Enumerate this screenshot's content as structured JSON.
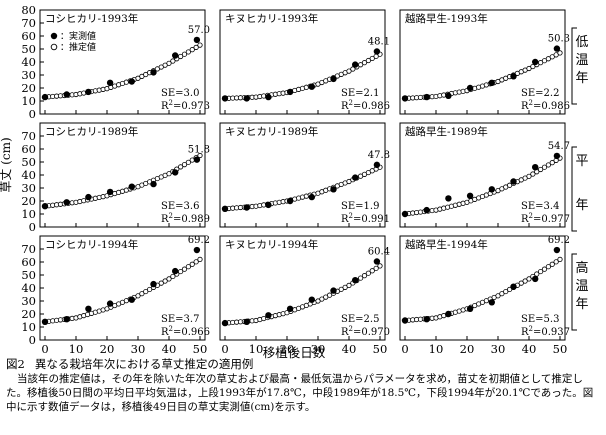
{
  "figure": {
    "ylabel": "草丈 (cm)",
    "xlabel": "移植後日数",
    "legend": {
      "observed": "：実測値",
      "estimated": "：推定値"
    },
    "row_labels": [
      "低温年",
      "平年",
      "高温年"
    ]
  },
  "caption": {
    "number": "図2",
    "title": "異なる栽培年次における草丈推定の適用例",
    "body": "当該年の推定値は，その年を除いた年次の草丈および最高・最低気温からパラメータを求め，苗丈を初期値として推定した。移植後50日間の平均日平均気温は，上段1993年が17.8℃，中段1989年が18.5℃，下段1994年が20.1℃であった。図中に示す数値データは，移植後49日目の草丈実測値(cm)を示す。"
  },
  "chart_data": [
    {
      "type": "scatter",
      "title": "コシヒカリ-1993年",
      "annotation": "57.0",
      "se": "SE=3.0",
      "r2": "R",
      "r2v": "=0.973",
      "xlim": [
        0,
        50
      ],
      "ylim": [
        0,
        80
      ],
      "xticks": [],
      "yticks": [
        0,
        10,
        20,
        30,
        40,
        50,
        60,
        70,
        80
      ],
      "observed": [
        {
          "x": 0,
          "y": 13
        },
        {
          "x": 7,
          "y": 15
        },
        {
          "x": 14,
          "y": 17
        },
        {
          "x": 21,
          "y": 24
        },
        {
          "x": 28,
          "y": 25
        },
        {
          "x": 35,
          "y": 32
        },
        {
          "x": 42,
          "y": 45
        },
        {
          "x": 49,
          "y": 57
        }
      ],
      "estimated_curve": [
        {
          "x": 0,
          "y": 13
        },
        {
          "x": 10,
          "y": 15
        },
        {
          "x": 20,
          "y": 19.5
        },
        {
          "x": 30,
          "y": 27.5
        },
        {
          "x": 40,
          "y": 39
        },
        {
          "x": 50,
          "y": 53
        }
      ]
    },
    {
      "type": "scatter",
      "title": "キヌヒカリ-1993年",
      "annotation": "48.1",
      "se": "SE=2.1",
      "r2": "R",
      "r2v": "=0.986",
      "xlim": [
        0,
        50
      ],
      "ylim": [
        0,
        80
      ],
      "xticks": [],
      "yticks": [],
      "observed": [
        {
          "x": 0,
          "y": 12
        },
        {
          "x": 7,
          "y": 12
        },
        {
          "x": 14,
          "y": 13
        },
        {
          "x": 21,
          "y": 17
        },
        {
          "x": 28,
          "y": 21
        },
        {
          "x": 35,
          "y": 27
        },
        {
          "x": 42,
          "y": 38
        },
        {
          "x": 49,
          "y": 48.1
        }
      ],
      "estimated_curve": [
        {
          "x": 0,
          "y": 12
        },
        {
          "x": 10,
          "y": 13
        },
        {
          "x": 20,
          "y": 16.5
        },
        {
          "x": 30,
          "y": 23
        },
        {
          "x": 40,
          "y": 33
        },
        {
          "x": 50,
          "y": 46
        }
      ]
    },
    {
      "type": "scatter",
      "title": "越路早生-1993年",
      "annotation": "50.3",
      "se": "SE=2.2",
      "r2": "R",
      "r2v": "=0.986",
      "xlim": [
        0,
        50
      ],
      "ylim": [
        0,
        80
      ],
      "xticks": [],
      "yticks": [],
      "observed": [
        {
          "x": 0,
          "y": 12
        },
        {
          "x": 7,
          "y": 13
        },
        {
          "x": 14,
          "y": 14
        },
        {
          "x": 21,
          "y": 20
        },
        {
          "x": 28,
          "y": 24
        },
        {
          "x": 35,
          "y": 29
        },
        {
          "x": 42,
          "y": 40
        },
        {
          "x": 49,
          "y": 50.3
        }
      ],
      "estimated_curve": [
        {
          "x": 0,
          "y": 12
        },
        {
          "x": 10,
          "y": 13.5
        },
        {
          "x": 20,
          "y": 18
        },
        {
          "x": 30,
          "y": 25
        },
        {
          "x": 40,
          "y": 35
        },
        {
          "x": 50,
          "y": 47
        }
      ]
    },
    {
      "type": "scatter",
      "title": "コシヒカリ-1989年",
      "annotation": "51.8",
      "se": "SE=3.6",
      "r2": "R",
      "r2v": "=0.989",
      "xlim": [
        0,
        50
      ],
      "ylim": [
        0,
        80
      ],
      "xticks": [],
      "yticks": [
        0,
        10,
        20,
        30,
        40,
        50,
        60,
        70
      ],
      "observed": [
        {
          "x": 0,
          "y": 16
        },
        {
          "x": 7,
          "y": 19
        },
        {
          "x": 14,
          "y": 23
        },
        {
          "x": 21,
          "y": 27
        },
        {
          "x": 28,
          "y": 31
        },
        {
          "x": 35,
          "y": 33
        },
        {
          "x": 42,
          "y": 42
        },
        {
          "x": 49,
          "y": 51.8
        }
      ],
      "estimated_curve": [
        {
          "x": 0,
          "y": 16
        },
        {
          "x": 10,
          "y": 19
        },
        {
          "x": 20,
          "y": 24
        },
        {
          "x": 30,
          "y": 31
        },
        {
          "x": 40,
          "y": 41
        },
        {
          "x": 50,
          "y": 55
        }
      ]
    },
    {
      "type": "scatter",
      "title": "キヌヒカリ-1989年",
      "annotation": "47.8",
      "se": "SE=1.9",
      "r2": "R",
      "r2v": "=0.991",
      "xlim": [
        0,
        50
      ],
      "ylim": [
        0,
        80
      ],
      "xticks": [],
      "yticks": [],
      "observed": [
        {
          "x": 0,
          "y": 14
        },
        {
          "x": 7,
          "y": 15
        },
        {
          "x": 14,
          "y": 17
        },
        {
          "x": 21,
          "y": 20
        },
        {
          "x": 28,
          "y": 23
        },
        {
          "x": 35,
          "y": 29
        },
        {
          "x": 42,
          "y": 38
        },
        {
          "x": 49,
          "y": 47.8
        }
      ],
      "estimated_curve": [
        {
          "x": 0,
          "y": 14
        },
        {
          "x": 10,
          "y": 16
        },
        {
          "x": 20,
          "y": 20
        },
        {
          "x": 30,
          "y": 26
        },
        {
          "x": 40,
          "y": 35
        },
        {
          "x": 50,
          "y": 46
        }
      ]
    },
    {
      "type": "scatter",
      "title": "越路早生-1989年",
      "annotation": "54.7",
      "se": "SE=3.4",
      "r2": "R",
      "r2v": "=0.977",
      "xlim": [
        0,
        50
      ],
      "ylim": [
        0,
        80
      ],
      "xticks": [],
      "yticks": [],
      "observed": [
        {
          "x": 0,
          "y": 10
        },
        {
          "x": 7,
          "y": 13
        },
        {
          "x": 14,
          "y": 22
        },
        {
          "x": 21,
          "y": 24
        },
        {
          "x": 28,
          "y": 29
        },
        {
          "x": 35,
          "y": 35
        },
        {
          "x": 42,
          "y": 46
        },
        {
          "x": 49,
          "y": 54.7
        }
      ],
      "estimated_curve": [
        {
          "x": 0,
          "y": 10
        },
        {
          "x": 10,
          "y": 13
        },
        {
          "x": 20,
          "y": 19
        },
        {
          "x": 30,
          "y": 28
        },
        {
          "x": 40,
          "y": 39
        },
        {
          "x": 50,
          "y": 53
        }
      ]
    },
    {
      "type": "scatter",
      "title": "コシヒカリ-1994年",
      "annotation": "69.2",
      "se": "SE=3.7",
      "r2": "R",
      "r2v": "=0.966",
      "xlim": [
        0,
        50
      ],
      "ylim": [
        0,
        80
      ],
      "xticks": [
        0,
        10,
        20,
        30,
        40,
        50
      ],
      "yticks": [
        0,
        10,
        20,
        30,
        40,
        50,
        60,
        70
      ],
      "observed": [
        {
          "x": 0,
          "y": 14
        },
        {
          "x": 7,
          "y": 16
        },
        {
          "x": 14,
          "y": 24
        },
        {
          "x": 21,
          "y": 28
        },
        {
          "x": 28,
          "y": 31
        },
        {
          "x": 35,
          "y": 43
        },
        {
          "x": 42,
          "y": 53
        },
        {
          "x": 49,
          "y": 69.2
        }
      ],
      "estimated_curve": [
        {
          "x": 0,
          "y": 14
        },
        {
          "x": 10,
          "y": 17
        },
        {
          "x": 20,
          "y": 24
        },
        {
          "x": 30,
          "y": 34
        },
        {
          "x": 40,
          "y": 47
        },
        {
          "x": 50,
          "y": 62
        }
      ]
    },
    {
      "type": "scatter",
      "title": "キヌヒカリ-1994年",
      "annotation": "60.4",
      "se": "SE=2.5",
      "r2": "R",
      "r2v": "=0.970",
      "xlim": [
        0,
        50
      ],
      "ylim": [
        0,
        80
      ],
      "xticks": [
        0,
        10,
        20,
        30,
        40,
        50
      ],
      "yticks": [],
      "observed": [
        {
          "x": 0,
          "y": 13
        },
        {
          "x": 7,
          "y": 14
        },
        {
          "x": 14,
          "y": 19
        },
        {
          "x": 21,
          "y": 24
        },
        {
          "x": 28,
          "y": 31
        },
        {
          "x": 35,
          "y": 38
        },
        {
          "x": 42,
          "y": 46
        },
        {
          "x": 49,
          "y": 60.4
        }
      ],
      "estimated_curve": [
        {
          "x": 0,
          "y": 13
        },
        {
          "x": 10,
          "y": 15
        },
        {
          "x": 20,
          "y": 21
        },
        {
          "x": 30,
          "y": 30
        },
        {
          "x": 40,
          "y": 42
        },
        {
          "x": 50,
          "y": 57
        }
      ]
    },
    {
      "type": "scatter",
      "title": "越路早生-1994年",
      "annotation": "69.2",
      "se": "SE=5.3",
      "r2": "R",
      "r2v": "=0.937",
      "xlim": [
        0,
        50
      ],
      "ylim": [
        0,
        80
      ],
      "xticks": [
        0,
        10,
        20,
        30,
        40,
        50
      ],
      "yticks": [],
      "observed": [
        {
          "x": 0,
          "y": 15
        },
        {
          "x": 7,
          "y": 16
        },
        {
          "x": 14,
          "y": 20
        },
        {
          "x": 21,
          "y": 24
        },
        {
          "x": 28,
          "y": 29
        },
        {
          "x": 35,
          "y": 41
        },
        {
          "x": 42,
          "y": 47
        },
        {
          "x": 49,
          "y": 69.2
        }
      ],
      "estimated_curve": [
        {
          "x": 0,
          "y": 15
        },
        {
          "x": 10,
          "y": 17
        },
        {
          "x": 20,
          "y": 24
        },
        {
          "x": 30,
          "y": 34
        },
        {
          "x": 40,
          "y": 47
        },
        {
          "x": 50,
          "y": 62
        }
      ]
    }
  ]
}
